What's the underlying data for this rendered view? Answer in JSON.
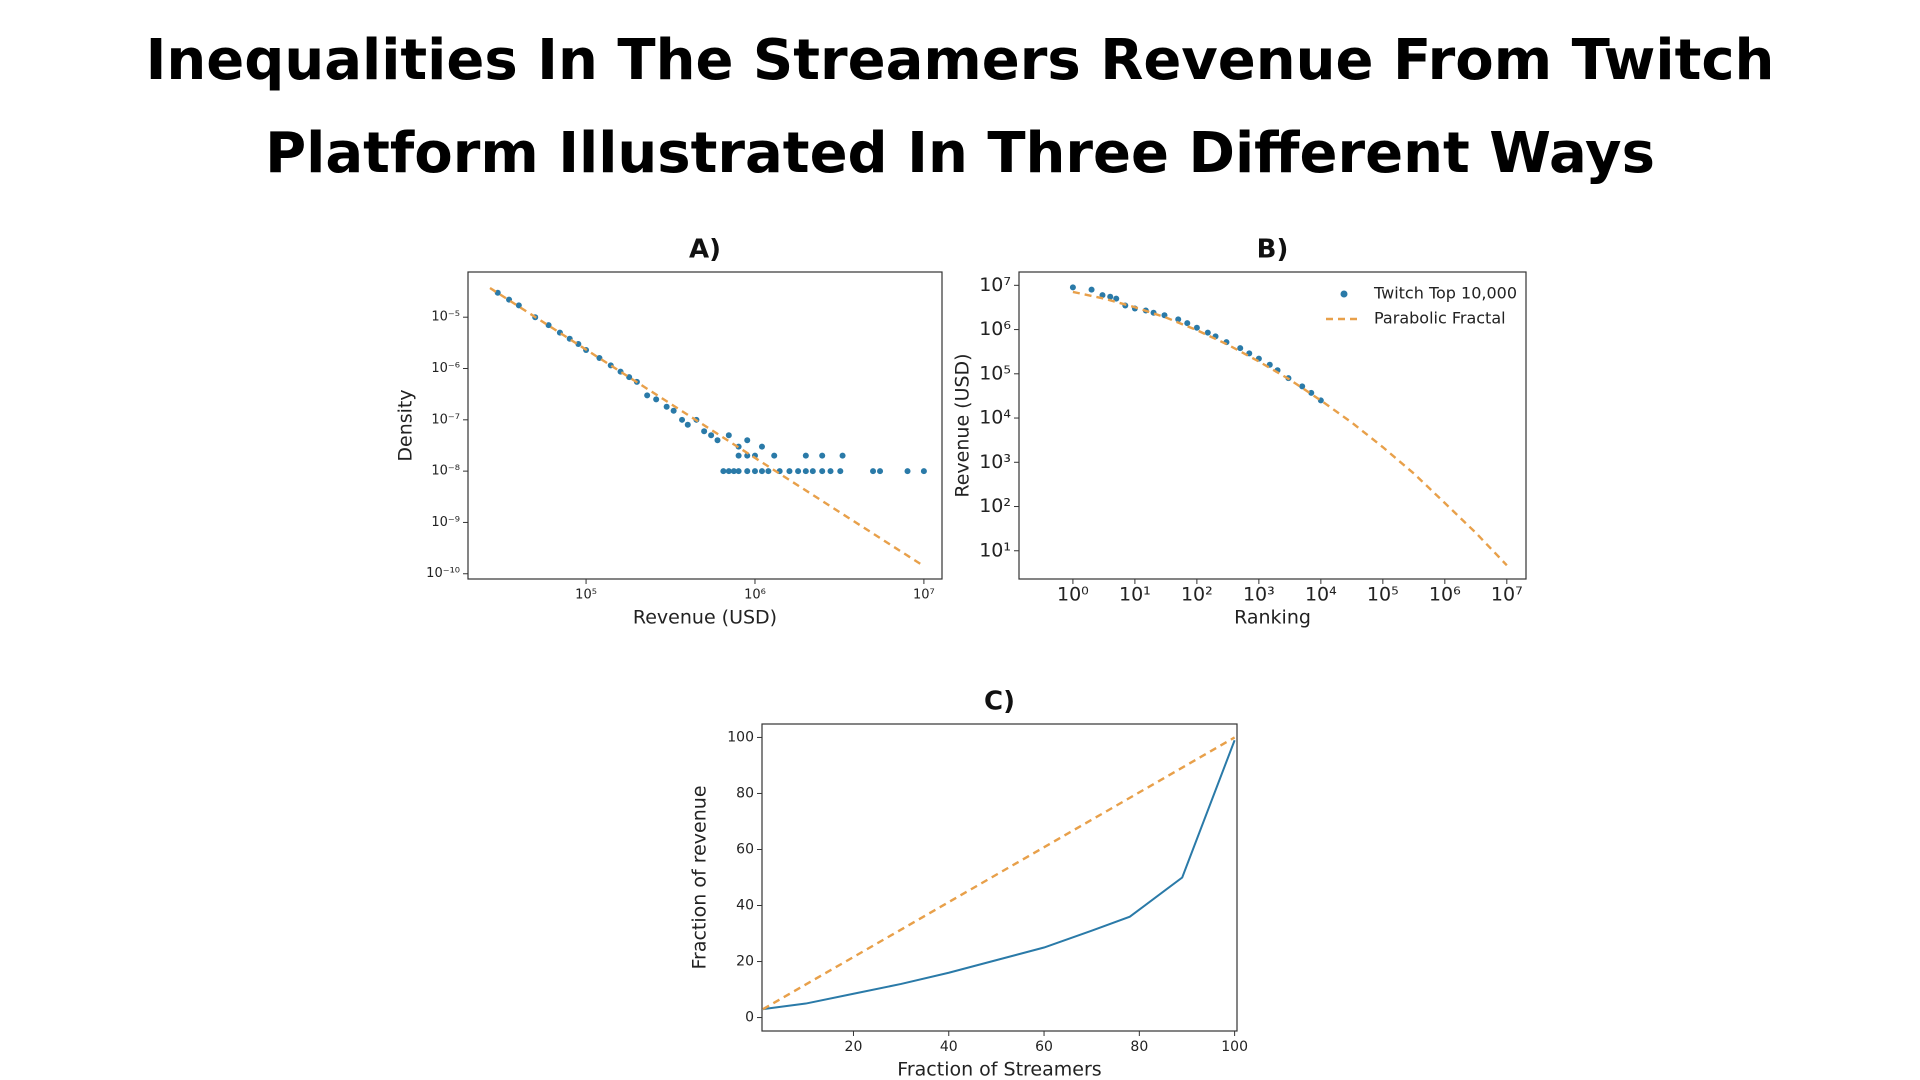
{
  "header": {
    "title_lines": [
      "Inequalities In The Streamers Revenue From Twitch",
      "Platform Illustrated In Three Different Ways"
    ]
  },
  "chart_data": [
    {
      "type": "scatter",
      "title": "A)",
      "xlabel": "Revenue (USD)",
      "ylabel": "Density",
      "xlog": true,
      "ylog": true,
      "xlim": [
        20000,
        12800000
      ],
      "ylim": [
        7.9e-11,
        7.6e-05
      ],
      "xticks": [
        {
          "value": 100000,
          "label": "10⁵"
        },
        {
          "value": 1000000,
          "label": "10⁶"
        },
        {
          "value": 10000000,
          "label": "10⁷"
        }
      ],
      "yticks": [
        {
          "value": 1e-10,
          "label": "10⁻¹⁰"
        },
        {
          "value": 1e-09,
          "label": "10⁻⁹"
        },
        {
          "value": 1e-08,
          "label": "10⁻⁸"
        },
        {
          "value": 1e-07,
          "label": "10⁻⁷"
        },
        {
          "value": 1e-06,
          "label": "10⁻⁶"
        },
        {
          "value": 1e-05,
          "label": "10⁻⁵"
        }
      ],
      "series": [
        {
          "color": "#2a7aa8",
          "marker": "dot",
          "x": [
            30000,
            35000,
            40000,
            50000,
            60000,
            70000,
            80000,
            90000,
            100000,
            120000,
            140000,
            160000,
            180000,
            200000,
            230000,
            260000,
            300000,
            330000,
            370000,
            400000,
            450000,
            500000,
            550000,
            600000,
            700000,
            800000,
            900000,
            1100000,
            1300000,
            650000,
            700000,
            750000,
            800000,
            900000,
            1000000,
            1100000,
            1200000,
            1400000,
            1600000,
            1800000,
            2000000,
            2200000,
            2500000,
            2800000,
            3200000,
            5000000,
            5500000,
            8000000,
            10000000,
            800000,
            900000,
            1000000,
            2000000,
            2500000,
            3300000
          ],
          "values": [
            3e-05,
            2.2e-05,
            1.7e-05,
            1e-05,
            7e-06,
            5e-06,
            3.8e-06,
            3e-06,
            2.3e-06,
            1.6e-06,
            1.15e-06,
            8.7e-07,
            6.8e-07,
            5.5e-07,
            3e-07,
            2.5e-07,
            1.8e-07,
            1.5e-07,
            1e-07,
            8e-08,
            1e-07,
            6e-08,
            5e-08,
            4e-08,
            5e-08,
            3e-08,
            4e-08,
            3e-08,
            2e-08,
            1e-08,
            1e-08,
            1e-08,
            1e-08,
            1e-08,
            1e-08,
            1e-08,
            1e-08,
            1e-08,
            1e-08,
            1e-08,
            1e-08,
            1e-08,
            1e-08,
            1e-08,
            1e-08,
            1e-08,
            1e-08,
            1e-08,
            1e-08,
            2e-08,
            2e-08,
            2e-08,
            2e-08,
            2e-08,
            2e-08
          ]
        },
        {
          "color": "#e8a04a",
          "marker": "dashed",
          "x": [
            27000,
            9700000
          ],
          "values": [
            3.7e-05,
            1.5e-10
          ]
        }
      ]
    },
    {
      "type": "scatter",
      "title": "B)",
      "xlabel": "Ranking",
      "ylabel": "Revenue (USD)",
      "xlog": true,
      "ylog": true,
      "xlim": [
        0.135,
        20400000
      ],
      "ylim": [
        2.3,
        20000000
      ],
      "legend": "upper right",
      "xticks": [
        {
          "value": 1,
          "label": "10⁰"
        },
        {
          "value": 10,
          "label": "10¹"
        },
        {
          "value": 100,
          "label": "10²"
        },
        {
          "value": 1000,
          "label": "10³"
        },
        {
          "value": 10000,
          "label": "10⁴"
        },
        {
          "value": 100000,
          "label": "10⁵"
        },
        {
          "value": 1000000,
          "label": "10⁶"
        },
        {
          "value": 10000000,
          "label": "10⁷"
        }
      ],
      "yticks": [
        {
          "value": 10,
          "label": "10¹"
        },
        {
          "value": 100,
          "label": "10²"
        },
        {
          "value": 1000,
          "label": "10³"
        },
        {
          "value": 10000,
          "label": "10⁴"
        },
        {
          "value": 100000,
          "label": "10⁵"
        },
        {
          "value": 1000000,
          "label": "10⁶"
        },
        {
          "value": 10000000,
          "label": "10⁷"
        }
      ],
      "series": [
        {
          "name": "Twitch Top 10,000",
          "color": "#2a7aa8",
          "marker": "dot",
          "x": [
            1,
            2,
            3,
            4,
            5,
            7,
            10,
            15,
            20,
            30,
            50,
            70,
            100,
            150,
            200,
            300,
            500,
            700,
            1000,
            1500,
            2000,
            3000,
            5000,
            7000,
            10000
          ],
          "values": [
            9000000,
            8000000,
            6000000,
            5500000,
            5000000,
            3500000,
            3000000,
            2700000,
            2400000,
            2100000,
            1700000,
            1400000,
            1100000,
            850000,
            700000,
            520000,
            380000,
            290000,
            220000,
            160000,
            120000,
            80000,
            52000,
            37000,
            25000
          ]
        },
        {
          "name": "Parabolic Fractal",
          "color": "#e8a04a",
          "marker": "dashed",
          "x": [
            1,
            3.2,
            10,
            32,
            100,
            320,
            1000,
            3200,
            10000,
            32000,
            100000,
            320000,
            1000000,
            3200000,
            10000000
          ],
          "values": [
            7100000,
            5000000,
            3200000,
            1860000,
            970000,
            450000,
            190000,
            73000,
            25000,
            7800,
            2200,
            550,
            120,
            25,
            4.7
          ]
        }
      ]
    },
    {
      "type": "line",
      "title": "C)",
      "xlabel": "Fraction of Streamers",
      "ylabel": "Fraction of revenue",
      "xlim": [
        0.8,
        100.5
      ],
      "ylim": [
        -4.8,
        104.8
      ],
      "xticks": [
        20,
        40,
        60,
        80,
        100
      ],
      "yticks": [
        0,
        20,
        40,
        60,
        80,
        100
      ],
      "series": [
        {
          "color": "#2a7aa8",
          "marker": "solid",
          "x": [
            1,
            10,
            20,
            30,
            40,
            50,
            60,
            70,
            78,
            89,
            100
          ],
          "values": [
            3,
            5,
            8.5,
            12,
            16,
            20.5,
            25,
            31,
            36,
            50,
            99
          ]
        },
        {
          "color": "#e8a04a",
          "marker": "dashed",
          "x": [
            1,
            100
          ],
          "values": [
            3,
            100
          ]
        }
      ]
    }
  ]
}
